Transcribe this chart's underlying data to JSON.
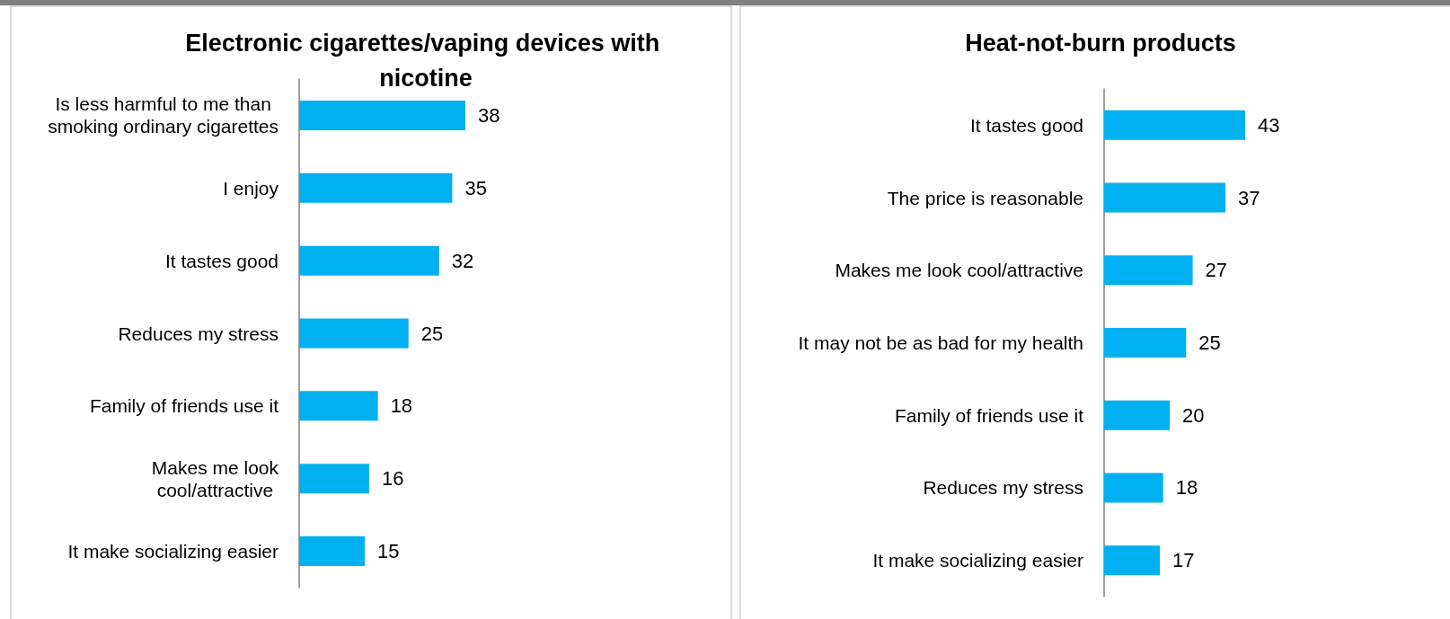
{
  "chart_data": [
    {
      "type": "bar",
      "orientation": "horizontal",
      "title": "Electronic cigarettes/vaping devices with nicotine",
      "categories": [
        "Is less harmful to me than smoking ordinary cigarettes",
        "I enjoy",
        "It tastes good",
        "Reduces my stress",
        "Family of friends use it",
        "Makes me look cool/attractive",
        "It make socializing easier"
      ],
      "values": [
        38,
        35,
        32,
        25,
        18,
        16,
        15
      ],
      "color": "#00b0f0",
      "data_labels": true,
      "tick_labels": "y"
    },
    {
      "type": "bar",
      "orientation": "horizontal",
      "title": "Heat-not-burn products",
      "categories": [
        "It tastes good",
        "The price is reasonable",
        "Makes me look cool/attractive",
        "It may not be as bad for my health",
        "Family of friends use it",
        "Reduces my stress",
        "It make socializing easier"
      ],
      "values": [
        43,
        37,
        27,
        25,
        20,
        18,
        17
      ],
      "color": "#00b0f0",
      "data_labels": true,
      "tick_labels": "y"
    }
  ]
}
